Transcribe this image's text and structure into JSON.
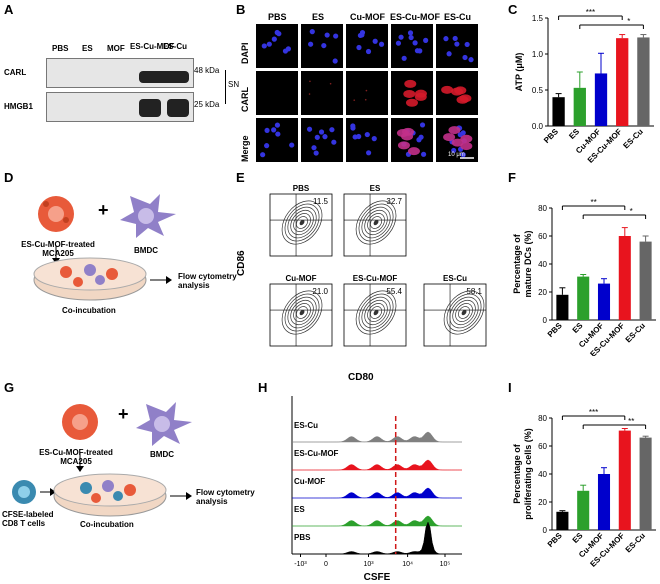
{
  "panels": {
    "A": {
      "label": "A",
      "lanes": [
        "PBS",
        "ES",
        "MOF",
        "ES-Cu-MOF",
        "ES-Cu"
      ],
      "rows": [
        "CARL",
        "HMGB1"
      ],
      "kda": [
        "48 kDa",
        "25 kDa"
      ],
      "sn": "SN"
    },
    "B": {
      "label": "B",
      "columns": [
        "PBS",
        "ES",
        "Cu-MOF",
        "ES-Cu-MOF",
        "ES-Cu"
      ],
      "rows": [
        "DAPI",
        "CARL",
        "Merge"
      ],
      "scale": "10 μm"
    },
    "C": {
      "label": "C"
    },
    "D": {
      "label": "D",
      "cell1": "ES-Cu-MOF-treated MCA205",
      "cell1_line1": "ES-Cu-MOF-treated",
      "cell1_line2": "MCA205",
      "cell2": "BMDC",
      "plus": "+",
      "dish": "Co-incubation",
      "output_line1": "Flow cytometry",
      "output_line2": "analysis"
    },
    "E": {
      "label": "E",
      "plots": [
        {
          "name": "PBS",
          "value": "11.5"
        },
        {
          "name": "ES",
          "value": "32.7"
        },
        {
          "name": "Cu-MOF",
          "value": "21.0"
        },
        {
          "name": "ES-Cu-MOF",
          "value": "55.4"
        },
        {
          "name": "ES-Cu",
          "value": "58.1"
        }
      ],
      "xlabel": "CD80",
      "ylabel": "CD86"
    },
    "F": {
      "label": "F"
    },
    "G": {
      "label": "G",
      "cell1_line1": "ES-Cu-MOF-treated",
      "cell1_line2": "MCA205",
      "cell2": "BMDC",
      "plus": "+",
      "cell3_line1": "CFSE-labeled",
      "cell3_line2": "CD8 T cells",
      "dish": "Co-incubation",
      "output_line1": "Flow cytometry",
      "output_line2": "analysis"
    },
    "H": {
      "label": "H",
      "tracks": [
        "ES-Cu",
        "ES-Cu-MOF",
        "Cu-MOF",
        "ES",
        "PBS"
      ],
      "xlabel": "CSFE",
      "ticks": [
        "-10³",
        "0",
        "10³",
        "10⁴",
        "10⁵"
      ]
    },
    "I": {
      "label": "I"
    }
  },
  "chart_data": [
    {
      "id": "C",
      "type": "bar",
      "categories": [
        "PBS",
        "ES",
        "Cu-MOF",
        "ES-Cu-MOF",
        "ES-Cu"
      ],
      "values": [
        0.4,
        0.53,
        0.73,
        1.22,
        1.23
      ],
      "errors": [
        0.05,
        0.22,
        0.28,
        0.05,
        0.04
      ],
      "colors": [
        "#000000",
        "#2ca02c",
        "#0000cc",
        "#e8141e",
        "#666666"
      ],
      "ylabel": "ATP (μM)",
      "ylim": [
        0,
        1.5
      ],
      "yticks": [
        0.0,
        0.5,
        1.0,
        1.5
      ],
      "ytick_labels": [
        "0.0",
        "0.5",
        "1.0",
        "1.5"
      ],
      "significance": [
        "***",
        "*"
      ]
    },
    {
      "id": "F",
      "type": "bar",
      "categories": [
        "PBS",
        "ES",
        "Cu-MOF",
        "ES-Cu-MOF",
        "ES-Cu"
      ],
      "values": [
        18,
        31,
        26,
        60,
        56
      ],
      "errors": [
        5,
        1.5,
        3.5,
        6,
        4
      ],
      "colors": [
        "#000000",
        "#2ca02c",
        "#0000cc",
        "#e8141e",
        "#666666"
      ],
      "ylabel": "Percentage of mature DCs (%)",
      "ylabel_line1": "Percentage of",
      "ylabel_line2": "mature DCs (%)",
      "ylim": [
        0,
        80
      ],
      "yticks": [
        0,
        20,
        40,
        60,
        80
      ],
      "ytick_labels": [
        "0",
        "20",
        "40",
        "60",
        "80"
      ],
      "significance": [
        "**",
        "*"
      ]
    },
    {
      "id": "I",
      "type": "bar",
      "categories": [
        "PBS",
        "ES",
        "Cu-MOF",
        "ES-Cu-MOF",
        "ES-Cu"
      ],
      "values": [
        13,
        28,
        40,
        71,
        66
      ],
      "errors": [
        0.8,
        4,
        4.5,
        1.5,
        1
      ],
      "colors": [
        "#000000",
        "#2ca02c",
        "#0000cc",
        "#e8141e",
        "#666666"
      ],
      "ylabel": "Percentage of proliferating cells (%)",
      "ylabel_line1": "Percentage of",
      "ylabel_line2": "proliferating cells (%)",
      "ylim": [
        0,
        80
      ],
      "yticks": [
        0,
        20,
        40,
        60,
        80
      ],
      "ytick_labels": [
        "0",
        "20",
        "40",
        "60",
        "80"
      ],
      "significance": [
        "***",
        "**"
      ]
    }
  ]
}
